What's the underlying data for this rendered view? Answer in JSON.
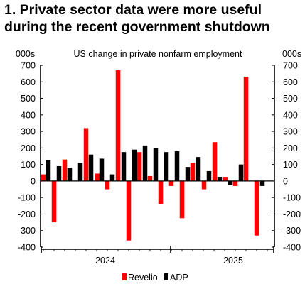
{
  "title_line1": "1. Private sector data were more useful",
  "title_line2": "during the recent government shutdown",
  "colors": {
    "revelio": "#ff0000",
    "adp": "#000000",
    "axis": "#000000"
  },
  "chart_data": {
    "type": "bar",
    "subtitle": "US change in private nonfarm employment",
    "unit_left": "000s",
    "unit_right": "000s",
    "ylim": [
      -400,
      700
    ],
    "yticks": [
      700,
      600,
      500,
      400,
      300,
      200,
      100,
      0,
      -100,
      -200,
      -300,
      -400
    ],
    "grid": false,
    "legend_position": "bottom",
    "x_tick_labels": [
      "2024",
      "2025"
    ],
    "series": [
      {
        "name": "Revelio",
        "values": [
          40,
          -250,
          130,
          null,
          null,
          320,
          45,
          -50,
          670,
          -360,
          175,
          30,
          -140,
          -30,
          -225,
          110,
          -50,
          235,
          25,
          -30,
          630,
          -330
        ]
      },
      {
        "name": "ADP",
        "values": [
          125,
          90,
          80,
          110,
          160,
          135,
          40,
          175,
          190,
          215,
          200,
          175,
          180,
          85,
          145,
          60,
          25,
          -25,
          100,
          -30
        ]
      }
    ]
  }
}
